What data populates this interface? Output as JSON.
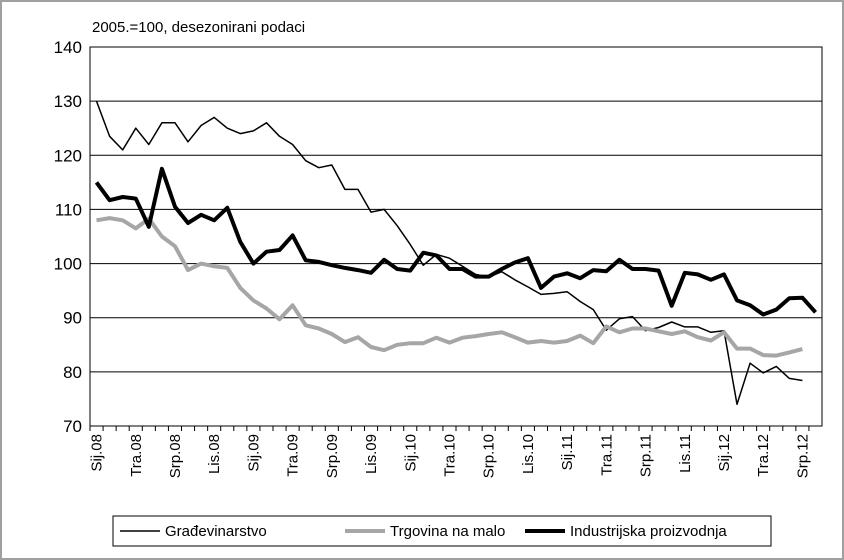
{
  "chart_data": {
    "type": "line",
    "subtitle": "2005.=100, desezonirani podaci",
    "categories": [
      "Sij.08",
      null,
      null,
      "Tra.08",
      null,
      null,
      "Srp.08",
      null,
      null,
      "Lis.08",
      null,
      null,
      "Sij.09",
      null,
      null,
      "Tra.09",
      null,
      null,
      "Srp.09",
      null,
      null,
      "Lis.09",
      null,
      null,
      "Sij.10",
      null,
      null,
      "Tra.10",
      null,
      null,
      "Srp.10",
      null,
      null,
      "Lis.10",
      null,
      null,
      "Sij.11",
      null,
      null,
      "Tra.11",
      null,
      null,
      "Srp.11",
      null,
      null,
      "Lis.11",
      null,
      null,
      "Sij.12",
      null,
      null,
      "Tra.12",
      null,
      null,
      "Srp.12",
      null
    ],
    "series": [
      {
        "name": "Građevinarstvo",
        "color": "#000000",
        "width": 1.5,
        "values": [
          130,
          123.5,
          121,
          125,
          122,
          126,
          126,
          122.5,
          125.5,
          127,
          125,
          124,
          124.5,
          126,
          123.5,
          122,
          119,
          117.7,
          118.2,
          113.7,
          113.7,
          109.5,
          110,
          107,
          103.5,
          99.7,
          101.7,
          101,
          99.5,
          98,
          97.5,
          98.5,
          97,
          95.7,
          94.3,
          94.5,
          94.8,
          93,
          91.5,
          87.7,
          89.8,
          90.2,
          87.6,
          88.2,
          89.2,
          88.3,
          88.3,
          87.3,
          87.6,
          74,
          81.6,
          79.8,
          81,
          78.8,
          78.4,
          null
        ]
      },
      {
        "name": "Trgovina na malo",
        "color": "#a6a6a6",
        "width": 4,
        "values": [
          108,
          108.4,
          108,
          106.5,
          108.3,
          105,
          103.2,
          98.8,
          100,
          99.5,
          99.2,
          95.5,
          93.2,
          91.7,
          89.7,
          92.3,
          88.6,
          88,
          87,
          85.5,
          86.4,
          84.6,
          84,
          85,
          85.3,
          85.3,
          86.3,
          85.4,
          86.3,
          86.6,
          87,
          87.3,
          86.4,
          85.4,
          85.7,
          85.4,
          85.7,
          86.7,
          85.3,
          88.4,
          87.3,
          88,
          88,
          87.5,
          87,
          87.5,
          86.4,
          85.8,
          87.3,
          84.3,
          84.3,
          83.1,
          83,
          83.6,
          84.2,
          null
        ]
      },
      {
        "name": "Industrijska proizvodnja",
        "color": "#000000",
        "width": 4,
        "values": [
          115,
          111.7,
          112.3,
          112,
          106.8,
          117.5,
          110.5,
          107.5,
          109,
          108,
          110.3,
          104,
          100,
          102.2,
          102.5,
          105.2,
          100.6,
          100.3,
          99.7,
          99.2,
          98.8,
          98.3,
          100.7,
          99,
          98.7,
          102,
          101.5,
          99,
          99,
          97.6,
          97.6,
          99,
          100.2,
          101,
          95.5,
          97.6,
          98.2,
          97.3,
          98.8,
          98.6,
          100.7,
          99,
          99,
          98.7,
          92.2,
          98.3,
          98,
          97,
          98,
          93.2,
          92.3,
          90.6,
          91.5,
          93.6,
          93.7,
          91
        ]
      }
    ],
    "ylim": [
      70,
      140
    ],
    "yticks": [
      70,
      80,
      90,
      100,
      110,
      120,
      130,
      140
    ],
    "grid": true,
    "legend": "bottom"
  }
}
